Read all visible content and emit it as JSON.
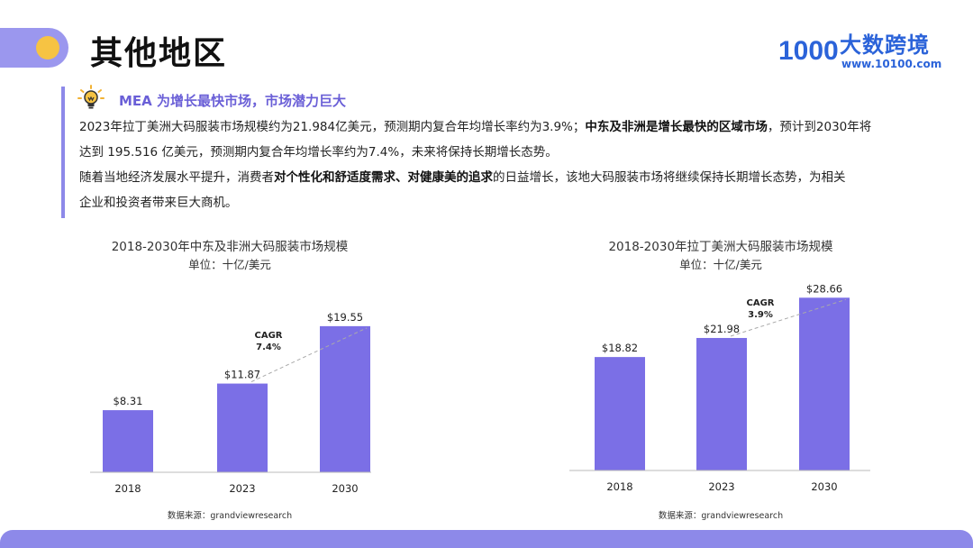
{
  "page": {
    "title": "其他地区",
    "logo_name": "大数跨境",
    "logo_url": "www.10100.com",
    "logo_mark": "1000"
  },
  "intro": {
    "heading": "MEA 为增长最快市场，市场潜力巨大",
    "p1_a": "2023年拉丁美洲大码服装市场规模约为21.984亿美元，预测期内复合年均增长率约为3.9%；",
    "p1_b": "中东及非洲是增长最快的区域市场",
    "p1_c": "，预计到2030年将",
    "p2": "达到 195.516 亿美元，预测期内复合年均增长率约为7.4%，未来将保持长期增长态势。",
    "p3_a": "随着当地经济发展水平提升，消费者",
    "p3_b": "对个性化和舒适度需求、对健康美的追求",
    "p3_c": "的日益增长，该地大码服装市场将继续保持长期增长态势，为相关",
    "p4": "企业和投资者带来巨大商机。"
  },
  "colors": {
    "bar": "#7b6fe6",
    "accent": "#8d89e9",
    "brand": "#2b63d9"
  },
  "chart_data": [
    {
      "type": "bar",
      "title": "2018-2030年中东及非洲大码服装市场规模",
      "unit": "单位：十亿/美元",
      "categories": [
        "2018",
        "2023",
        "2030"
      ],
      "values": [
        8.31,
        11.87,
        19.55
      ],
      "value_labels": [
        "$8.31",
        "$11.87",
        "$19.55"
      ],
      "cagr_label": "CAGR",
      "cagr_value": "7.4%",
      "ylim": [
        0,
        20.5
      ],
      "source": "数据来源：grandviewresearch"
    },
    {
      "type": "bar",
      "title": "2018-2030年拉丁美洲大码服装市场规模",
      "unit": "单位：十亿/美元",
      "categories": [
        "2018",
        "2023",
        "2030"
      ],
      "values": [
        18.82,
        21.98,
        28.66
      ],
      "value_labels": [
        "$18.82",
        "$21.98",
        "$28.66"
      ],
      "cagr_label": "CAGR",
      "cagr_value": "3.9%",
      "ylim": [
        0,
        30.2
      ],
      "source": "数据来源：grandviewresearch"
    }
  ]
}
